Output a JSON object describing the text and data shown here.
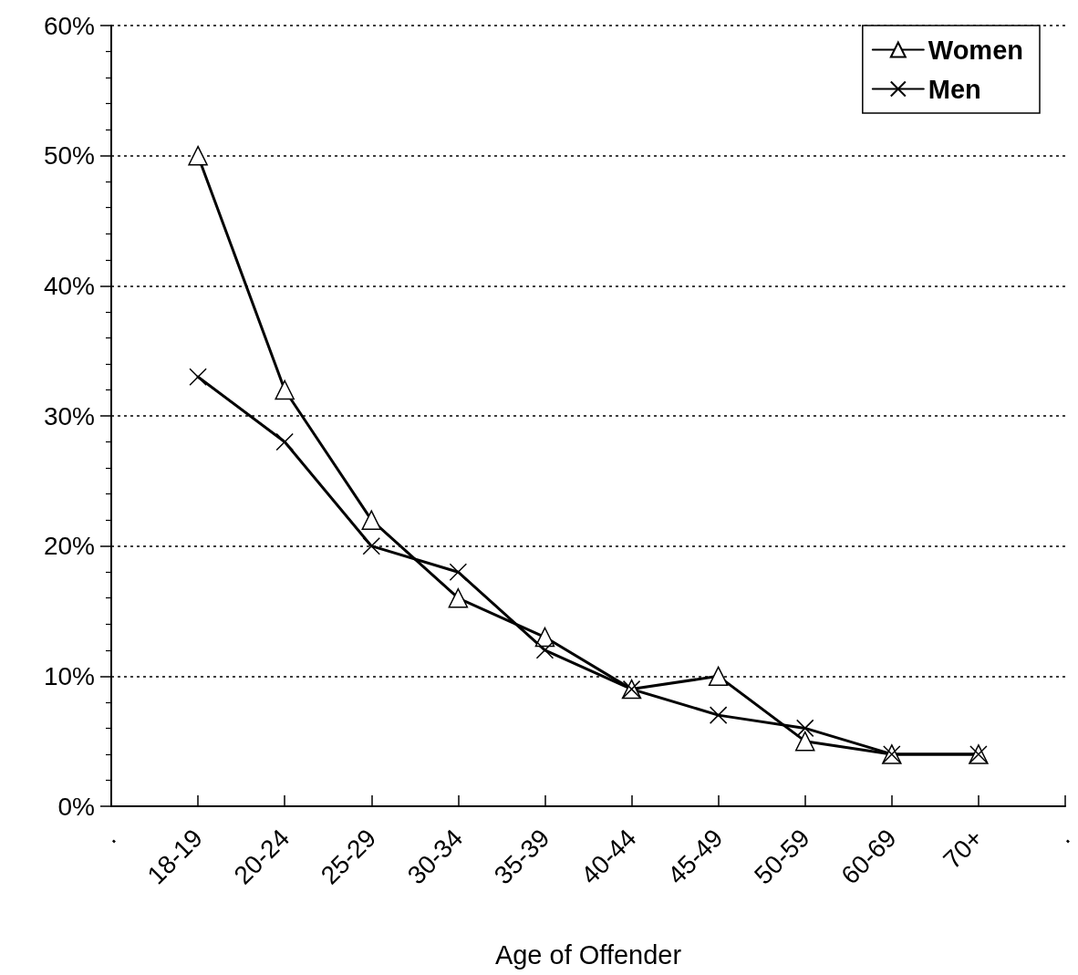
{
  "chart_data": {
    "type": "line",
    "xlabel": "Age of Offender",
    "categories": [
      ".",
      "18-19",
      "20-24",
      "25-29",
      "30-34",
      "35-39",
      "40-44",
      "45-49",
      "50-59",
      "60-69",
      "70+",
      "."
    ],
    "series": [
      {
        "name": "Women",
        "color": "#000000",
        "marker": "triangle",
        "values": [
          null,
          50,
          32,
          22,
          16,
          13,
          9,
          10,
          5,
          4,
          4,
          null
        ]
      },
      {
        "name": "Men",
        "color": "#000000",
        "marker": "cross",
        "values": [
          null,
          33,
          28,
          20,
          18,
          12,
          9,
          7,
          6,
          4,
          4,
          null
        ]
      }
    ],
    "ylim": [
      0,
      60
    ],
    "yticks": [
      {
        "value": 0,
        "label": "0%"
      },
      {
        "value": 10,
        "label": "10%"
      },
      {
        "value": 20,
        "label": "20%"
      },
      {
        "value": 30,
        "label": "30%"
      },
      {
        "value": 40,
        "label": "40%"
      },
      {
        "value": 50,
        "label": "50%"
      },
      {
        "value": 60,
        "label": "60%"
      }
    ],
    "grid": "y",
    "legend": "top right",
    "line_style": "solid"
  }
}
